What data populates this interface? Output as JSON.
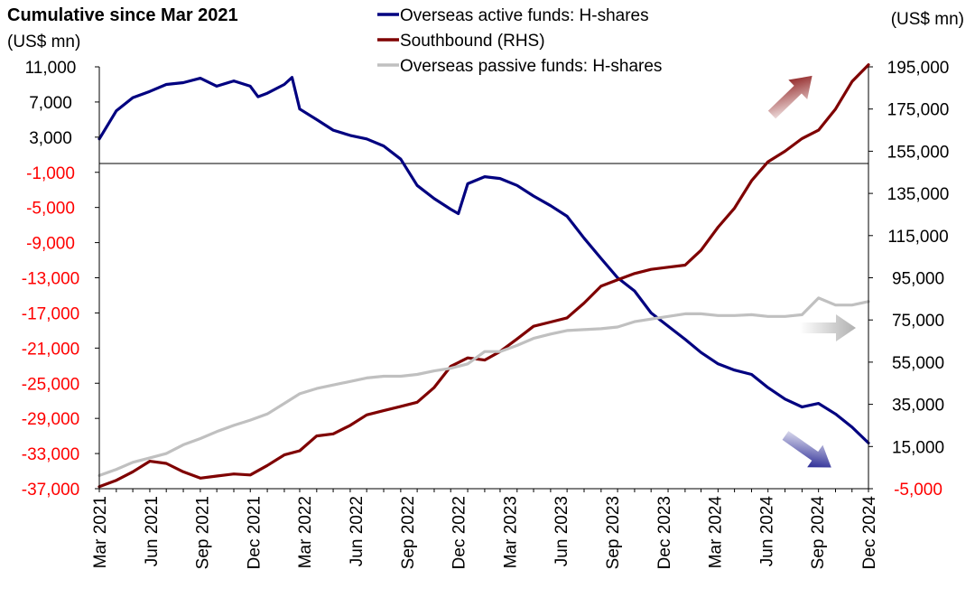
{
  "chart_data": {
    "type": "line",
    "title": "Cumulative since Mar 2021",
    "left_unit": "(US$ mn)",
    "right_unit": "(US$ mn)",
    "x_tick_labels": [
      "Mar 2021",
      "Jun 2021",
      "Sep 2021",
      "Dec 2021",
      "Mar 2022",
      "Jun 2022",
      "Sep 2022",
      "Dec 2022",
      "Mar 2023",
      "Jun 2023",
      "Sep 2023",
      "Dec 2023",
      "Mar 2024",
      "Jun 2024",
      "Sep 2024",
      "Dec 2024"
    ],
    "x_range": [
      "2021-03",
      "2024-12"
    ],
    "y_left": {
      "ticks": [
        11000,
        7000,
        3000,
        -1000,
        -5000,
        -9000,
        -13000,
        -17000,
        -21000,
        -25000,
        -29000,
        -33000,
        -37000
      ],
      "tick_labels": [
        "11,000",
        "7,000",
        "3,000",
        "-1,000",
        "-5,000",
        "-9,000",
        "-13,000",
        "-17,000",
        "-21,000",
        "-25,000",
        "-29,000",
        "-33,000",
        "-37,000"
      ],
      "range": [
        -37000,
        11000
      ],
      "positive_color": "#000000",
      "negative_color": "#ff0000"
    },
    "y_right": {
      "ticks": [
        195000,
        175000,
        155000,
        135000,
        115000,
        95000,
        75000,
        55000,
        35000,
        15000,
        -5000
      ],
      "tick_labels": [
        "195,000",
        "175,000",
        "155,000",
        "135,000",
        "115,000",
        "95,000",
        "75,000",
        "55,000",
        "35,000",
        "15,000",
        "-5,000"
      ],
      "range": [
        -5000,
        195000
      ],
      "positive_color": "#000000",
      "negative_color": "#ff0000"
    },
    "zero_line_left": 0,
    "series": [
      {
        "name": "Overseas active funds: H-shares",
        "axis": "left",
        "color": "#000080",
        "points": [
          [
            "2021-03-01",
            2800
          ],
          [
            "2021-04-01",
            6000
          ],
          [
            "2021-05-01",
            7500
          ],
          [
            "2021-06-01",
            8200
          ],
          [
            "2021-07-01",
            9000
          ],
          [
            "2021-08-01",
            9200
          ],
          [
            "2021-09-01",
            9700
          ],
          [
            "2021-10-01",
            8800
          ],
          [
            "2021-11-01",
            9400
          ],
          [
            "2021-12-01",
            8800
          ],
          [
            "2021-12-15",
            7600
          ],
          [
            "2022-01-01",
            8000
          ],
          [
            "2022-02-01",
            9000
          ],
          [
            "2022-02-15",
            9800
          ],
          [
            "2022-03-01",
            6200
          ],
          [
            "2022-04-01",
            5000
          ],
          [
            "2022-05-01",
            3800
          ],
          [
            "2022-06-01",
            3200
          ],
          [
            "2022-07-01",
            2800
          ],
          [
            "2022-08-01",
            2000
          ],
          [
            "2022-09-01",
            500
          ],
          [
            "2022-10-01",
            -2500
          ],
          [
            "2022-11-01",
            -4000
          ],
          [
            "2022-12-01",
            -5200
          ],
          [
            "2022-12-15",
            -5700
          ],
          [
            "2023-01-01",
            -2300
          ],
          [
            "2023-02-01",
            -1500
          ],
          [
            "2023-03-01",
            -1700
          ],
          [
            "2023-04-01",
            -2500
          ],
          [
            "2023-05-01",
            -3700
          ],
          [
            "2023-06-01",
            -4800
          ],
          [
            "2023-07-01",
            -6000
          ],
          [
            "2023-08-01",
            -8500
          ],
          [
            "2023-09-01",
            -10800
          ],
          [
            "2023-10-01",
            -13000
          ],
          [
            "2023-11-01",
            -14500
          ],
          [
            "2023-12-01",
            -17000
          ],
          [
            "2024-01-01",
            -18500
          ],
          [
            "2024-02-01",
            -20000
          ],
          [
            "2024-03-01",
            -21500
          ],
          [
            "2024-04-01",
            -22800
          ],
          [
            "2024-05-01",
            -23500
          ],
          [
            "2024-06-01",
            -24000
          ],
          [
            "2024-07-01",
            -25500
          ],
          [
            "2024-08-01",
            -26800
          ],
          [
            "2024-09-01",
            -27700
          ],
          [
            "2024-10-01",
            -27300
          ],
          [
            "2024-11-01",
            -28500
          ],
          [
            "2024-12-01",
            -30000
          ],
          [
            "2024-12-31",
            -31800
          ]
        ]
      },
      {
        "name": "Southbound (RHS)",
        "axis": "right",
        "color": "#7f0000",
        "points": [
          [
            "2021-03-01",
            -4000
          ],
          [
            "2021-04-01",
            -1000
          ],
          [
            "2021-05-01",
            3000
          ],
          [
            "2021-06-01",
            8000
          ],
          [
            "2021-07-01",
            7000
          ],
          [
            "2021-08-01",
            3000
          ],
          [
            "2021-09-01",
            0
          ],
          [
            "2021-10-01",
            1000
          ],
          [
            "2021-11-01",
            2000
          ],
          [
            "2021-12-01",
            1500
          ],
          [
            "2022-01-01",
            6000
          ],
          [
            "2022-02-01",
            11000
          ],
          [
            "2022-03-01",
            13000
          ],
          [
            "2022-04-01",
            20000
          ],
          [
            "2022-05-01",
            21000
          ],
          [
            "2022-06-01",
            25000
          ],
          [
            "2022-07-01",
            30000
          ],
          [
            "2022-08-01",
            32000
          ],
          [
            "2022-09-01",
            34000
          ],
          [
            "2022-10-01",
            36000
          ],
          [
            "2022-11-01",
            43000
          ],
          [
            "2022-12-01",
            53000
          ],
          [
            "2023-01-01",
            57000
          ],
          [
            "2023-02-01",
            56000
          ],
          [
            "2023-03-01",
            60000
          ],
          [
            "2023-04-01",
            66000
          ],
          [
            "2023-05-01",
            72000
          ],
          [
            "2023-06-01",
            74000
          ],
          [
            "2023-07-01",
            76000
          ],
          [
            "2023-08-01",
            83000
          ],
          [
            "2023-09-01",
            91000
          ],
          [
            "2023-10-01",
            94000
          ],
          [
            "2023-11-01",
            97000
          ],
          [
            "2023-12-01",
            99000
          ],
          [
            "2024-01-01",
            100000
          ],
          [
            "2024-02-01",
            101000
          ],
          [
            "2024-03-01",
            108000
          ],
          [
            "2024-04-01",
            119000
          ],
          [
            "2024-05-01",
            128000
          ],
          [
            "2024-06-01",
            141000
          ],
          [
            "2024-07-01",
            150000
          ],
          [
            "2024-08-01",
            155000
          ],
          [
            "2024-09-01",
            161000
          ],
          [
            "2024-10-01",
            165000
          ],
          [
            "2024-11-01",
            175000
          ],
          [
            "2024-12-01",
            188000
          ],
          [
            "2024-12-31",
            196000
          ]
        ]
      },
      {
        "name": "Overseas passive funds: H-shares",
        "axis": "left",
        "color": "#c0c0c0",
        "points": [
          [
            "2021-03-01",
            -35500
          ],
          [
            "2021-04-01",
            -34800
          ],
          [
            "2021-05-01",
            -34000
          ],
          [
            "2021-06-01",
            -33500
          ],
          [
            "2021-07-01",
            -33000
          ],
          [
            "2021-08-01",
            -32000
          ],
          [
            "2021-09-01",
            -31300
          ],
          [
            "2021-10-01",
            -30500
          ],
          [
            "2021-11-01",
            -29800
          ],
          [
            "2021-12-01",
            -29200
          ],
          [
            "2022-01-01",
            -28500
          ],
          [
            "2022-02-01",
            -27300
          ],
          [
            "2022-03-01",
            -26200
          ],
          [
            "2022-04-01",
            -25600
          ],
          [
            "2022-05-01",
            -25200
          ],
          [
            "2022-06-01",
            -24800
          ],
          [
            "2022-07-01",
            -24400
          ],
          [
            "2022-08-01",
            -24200
          ],
          [
            "2022-09-01",
            -24200
          ],
          [
            "2022-10-01",
            -24000
          ],
          [
            "2022-11-01",
            -23600
          ],
          [
            "2022-12-01",
            -23300
          ],
          [
            "2023-01-01",
            -22800
          ],
          [
            "2023-02-01",
            -21400
          ],
          [
            "2023-03-01",
            -21400
          ],
          [
            "2023-04-01",
            -20700
          ],
          [
            "2023-05-01",
            -19900
          ],
          [
            "2023-06-01",
            -19400
          ],
          [
            "2023-07-01",
            -19000
          ],
          [
            "2023-08-01",
            -18900
          ],
          [
            "2023-09-01",
            -18800
          ],
          [
            "2023-10-01",
            -18600
          ],
          [
            "2023-11-01",
            -18000
          ],
          [
            "2023-12-01",
            -17700
          ],
          [
            "2024-01-01",
            -17400
          ],
          [
            "2024-02-01",
            -17100
          ],
          [
            "2024-03-01",
            -17100
          ],
          [
            "2024-04-01",
            -17300
          ],
          [
            "2024-05-01",
            -17300
          ],
          [
            "2024-06-01",
            -17200
          ],
          [
            "2024-07-01",
            -17400
          ],
          [
            "2024-08-01",
            -17400
          ],
          [
            "2024-09-01",
            -17200
          ],
          [
            "2024-10-01",
            -15300
          ],
          [
            "2024-11-01",
            -16100
          ],
          [
            "2024-12-01",
            -16100
          ],
          [
            "2024-12-31",
            -15700
          ]
        ]
      }
    ],
    "legend_position": "top",
    "grid": false,
    "trend_arrows": [
      {
        "series": "Southbound (RHS)",
        "direction": "up",
        "color": "#7f0000"
      },
      {
        "series": "Overseas passive funds: H-shares",
        "direction": "right",
        "color": "#b0b0b0"
      },
      {
        "series": "Overseas active funds: H-shares",
        "direction": "down",
        "color": "#000080"
      }
    ]
  }
}
